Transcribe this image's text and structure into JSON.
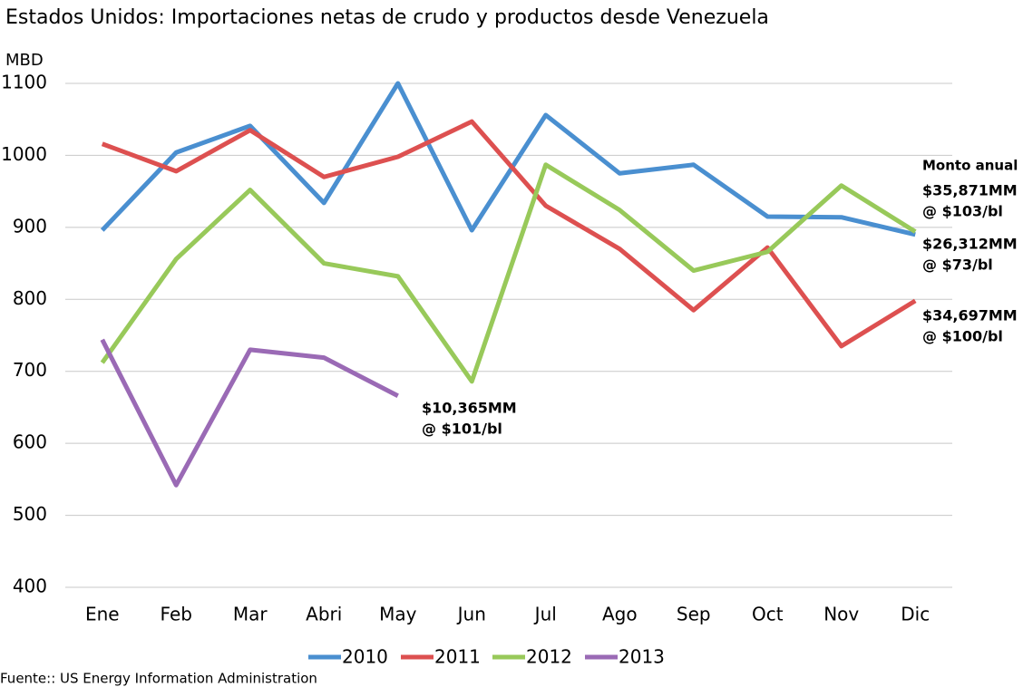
{
  "chart_data": {
    "type": "line",
    "title": "Estados Unidos: Importaciones netas de crudo y productos desde Venezuela",
    "y_label": "MBD",
    "source": "Fuente:: US Energy Information Administration",
    "categories": [
      "Ene",
      "Feb",
      "Mar",
      "Abri",
      "May",
      "Jun",
      "Jul",
      "Ago",
      "Sep",
      "Oct",
      "Nov",
      "Dic"
    ],
    "series": [
      {
        "name": "2010",
        "color": "#4a8fd0",
        "values": [
          896,
          1004,
          1041,
          934,
          1100,
          896,
          1056,
          975,
          987,
          915,
          914,
          890
        ]
      },
      {
        "name": "2011",
        "color": "#dd5050",
        "values": [
          1016,
          978,
          1035,
          970,
          998,
          1047,
          930,
          870,
          785,
          872,
          735,
          798
        ]
      },
      {
        "name": "2012",
        "color": "#98c95a",
        "values": [
          712,
          856,
          952,
          850,
          832,
          686,
          987,
          924,
          840,
          866,
          958,
          894
        ]
      },
      {
        "name": "2013",
        "color": "#9a6ab5",
        "values": [
          744,
          542,
          730,
          719,
          666,
          null,
          null,
          null,
          null,
          null,
          null,
          null
        ]
      }
    ],
    "ylim": [
      400,
      1100
    ],
    "yticks": [
      400,
      500,
      600,
      700,
      800,
      900,
      1000,
      1100
    ],
    "grid": true,
    "annotations": [
      {
        "lines": [
          "Monto anual"
        ],
        "color": "#000000"
      },
      {
        "lines": [
          "$35,871MM",
          "@ $103/bl"
        ],
        "color": "#1a8a1a"
      },
      {
        "lines": [
          "$26,312MM",
          "@ $73/bl"
        ],
        "color": "#4a5ae8"
      },
      {
        "lines": [
          "$34,697MM",
          "@ $100/bl"
        ],
        "color": "#e01010"
      },
      {
        "lines": [
          "$10,365MM",
          "@ $101/bl"
        ],
        "color": "#7a1a6a"
      }
    ]
  }
}
